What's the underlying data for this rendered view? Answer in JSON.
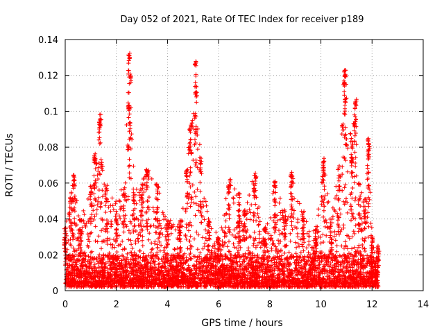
{
  "chart_data": {
    "type": "scatter",
    "title": "Day 052 of 2021, Rate Of TEC Index for receiver p189",
    "xlabel": "GPS time / hours",
    "ylabel": "ROTI / TECUs",
    "xlim": [
      0,
      14
    ],
    "ylim": [
      0,
      0.14
    ],
    "xticks": [
      0,
      2,
      4,
      6,
      8,
      10,
      12,
      14
    ],
    "xtick_labels": [
      "0",
      "2",
      "4",
      "6",
      "8",
      "10",
      "12",
      "14"
    ],
    "yticks": [
      0,
      0.02,
      0.04,
      0.06,
      0.08,
      0.1,
      0.12,
      0.14
    ],
    "ytick_labels": [
      "0",
      "0.02",
      "0.04",
      "0.06",
      "0.08",
      "0.1",
      "0.12",
      "0.14"
    ],
    "grid": true,
    "marker": "plus",
    "color": "#ff0000",
    "data_x_range": [
      0,
      12.25
    ],
    "baseline_range": [
      0.002,
      0.02
    ],
    "envelope": [
      {
        "x": 0.0,
        "y": 0.035
      },
      {
        "x": 0.2,
        "y": 0.055
      },
      {
        "x": 0.35,
        "y": 0.065
      },
      {
        "x": 0.6,
        "y": 0.04
      },
      {
        "x": 1.0,
        "y": 0.06
      },
      {
        "x": 1.15,
        "y": 0.076
      },
      {
        "x": 1.35,
        "y": 0.099
      },
      {
        "x": 1.6,
        "y": 0.06
      },
      {
        "x": 2.0,
        "y": 0.05
      },
      {
        "x": 2.3,
        "y": 0.06
      },
      {
        "x": 2.5,
        "y": 0.133
      },
      {
        "x": 2.7,
        "y": 0.06
      },
      {
        "x": 3.0,
        "y": 0.06
      },
      {
        "x": 3.2,
        "y": 0.07
      },
      {
        "x": 3.6,
        "y": 0.06
      },
      {
        "x": 4.0,
        "y": 0.04
      },
      {
        "x": 4.5,
        "y": 0.04
      },
      {
        "x": 4.75,
        "y": 0.07
      },
      {
        "x": 4.9,
        "y": 0.095
      },
      {
        "x": 5.1,
        "y": 0.128
      },
      {
        "x": 5.3,
        "y": 0.075
      },
      {
        "x": 5.6,
        "y": 0.04
      },
      {
        "x": 6.0,
        "y": 0.03
      },
      {
        "x": 6.4,
        "y": 0.063
      },
      {
        "x": 6.8,
        "y": 0.055
      },
      {
        "x": 7.0,
        "y": 0.045
      },
      {
        "x": 7.4,
        "y": 0.066
      },
      {
        "x": 7.8,
        "y": 0.035
      },
      {
        "x": 8.2,
        "y": 0.061
      },
      {
        "x": 8.6,
        "y": 0.045
      },
      {
        "x": 8.85,
        "y": 0.067
      },
      {
        "x": 9.3,
        "y": 0.045
      },
      {
        "x": 9.8,
        "y": 0.035
      },
      {
        "x": 10.1,
        "y": 0.074
      },
      {
        "x": 10.4,
        "y": 0.04
      },
      {
        "x": 10.7,
        "y": 0.07
      },
      {
        "x": 10.95,
        "y": 0.123
      },
      {
        "x": 11.2,
        "y": 0.085
      },
      {
        "x": 11.35,
        "y": 0.108
      },
      {
        "x": 11.5,
        "y": 0.06
      },
      {
        "x": 11.7,
        "y": 0.05
      },
      {
        "x": 11.85,
        "y": 0.086
      },
      {
        "x": 12.0,
        "y": 0.03
      },
      {
        "x": 12.25,
        "y": 0.025
      }
    ],
    "clusters": [
      {
        "x": 1.35,
        "y": 0.095
      },
      {
        "x": 1.38,
        "y": 0.099
      },
      {
        "x": 1.2,
        "y": 0.074
      },
      {
        "x": 1.42,
        "y": 0.072
      },
      {
        "x": 2.5,
        "y": 0.133
      },
      {
        "x": 2.55,
        "y": 0.12
      },
      {
        "x": 2.5,
        "y": 0.105
      },
      {
        "x": 2.52,
        "y": 0.094
      },
      {
        "x": 2.45,
        "y": 0.082
      },
      {
        "x": 5.1,
        "y": 0.128
      },
      {
        "x": 5.12,
        "y": 0.111
      },
      {
        "x": 4.95,
        "y": 0.095
      },
      {
        "x": 5.1,
        "y": 0.09
      },
      {
        "x": 4.85,
        "y": 0.08
      },
      {
        "x": 10.95,
        "y": 0.123
      },
      {
        "x": 10.9,
        "y": 0.118
      },
      {
        "x": 10.95,
        "y": 0.108
      },
      {
        "x": 10.85,
        "y": 0.093
      },
      {
        "x": 11.35,
        "y": 0.105
      },
      {
        "x": 11.3,
        "y": 0.095
      },
      {
        "x": 11.85,
        "y": 0.085
      },
      {
        "x": 11.88,
        "y": 0.082
      },
      {
        "x": 11.2,
        "y": 0.075
      },
      {
        "x": 10.1,
        "y": 0.072
      },
      {
        "x": 8.85,
        "y": 0.066
      },
      {
        "x": 7.45,
        "y": 0.065
      },
      {
        "x": 6.45,
        "y": 0.062
      },
      {
        "x": 8.2,
        "y": 0.061
      },
      {
        "x": 0.35,
        "y": 0.062
      },
      {
        "x": 3.2,
        "y": 0.068
      }
    ]
  }
}
